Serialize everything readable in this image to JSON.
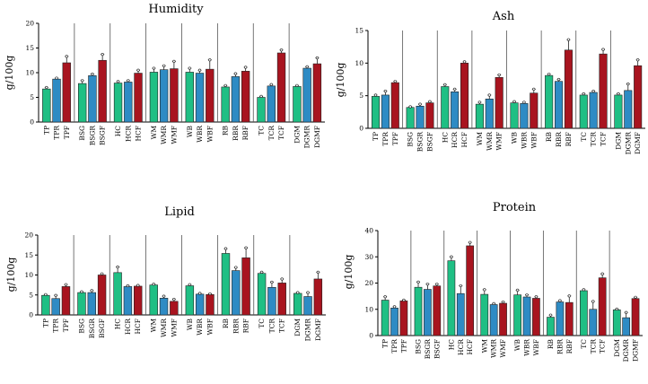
{
  "colors": {
    "green": "#1fbf84",
    "blue": "#2e8bc4",
    "red": "#a8141f",
    "bar_stroke": "#222222",
    "axis": "#000000",
    "group_divider": "#555555"
  },
  "chart_data": [
    {
      "type": "bar",
      "title": "Humidity",
      "ylabel": "g/100g",
      "ylim": [
        0,
        20
      ],
      "yticks": [
        0,
        5,
        10,
        15,
        20
      ],
      "grid": false,
      "groups": [
        {
          "labels": [
            "TP",
            "TPR",
            "TPF"
          ],
          "values": [
            6.7,
            8.7,
            12.0
          ],
          "errors": [
            0.3,
            0.2,
            1.3
          ]
        },
        {
          "labels": [
            "BSG",
            "BSGR",
            "BSGF"
          ],
          "values": [
            7.8,
            9.4,
            12.5
          ],
          "errors": [
            0.6,
            0.3,
            1.2
          ]
        },
        {
          "labels": [
            "HC",
            "HCR",
            "HCF"
          ],
          "values": [
            7.9,
            8.1,
            9.9
          ],
          "errors": [
            0.3,
            0.3,
            0.6
          ]
        },
        {
          "labels": [
            "WM",
            "WMR",
            "WMF"
          ],
          "values": [
            10.1,
            10.6,
            10.8
          ],
          "errors": [
            0.8,
            0.8,
            1.5
          ]
        },
        {
          "labels": [
            "WB",
            "WBR",
            "WBF"
          ],
          "values": [
            10.1,
            9.9,
            10.7
          ],
          "errors": [
            0.8,
            0.6,
            1.9
          ]
        },
        {
          "labels": [
            "RB",
            "RBR",
            "RBF"
          ],
          "values": [
            7.1,
            9.2,
            10.3
          ],
          "errors": [
            0.3,
            0.6,
            0.8
          ]
        },
        {
          "labels": [
            "TC",
            "TCR",
            "TCF"
          ],
          "values": [
            5.0,
            7.3,
            14.0
          ],
          "errors": [
            0.2,
            0.3,
            0.6
          ]
        },
        {
          "labels": [
            "DGM",
            "DGMR",
            "DGMF"
          ],
          "values": [
            7.2,
            10.9,
            11.8
          ],
          "errors": [
            0.2,
            0.3,
            1.2
          ]
        }
      ]
    },
    {
      "type": "bar",
      "title": "Ash",
      "ylabel": "g/100g",
      "ylim": [
        0,
        15
      ],
      "yticks": [
        0,
        5,
        10,
        15
      ],
      "grid": false,
      "groups": [
        {
          "labels": [
            "TP",
            "TPR",
            "TPF"
          ],
          "values": [
            4.9,
            5.1,
            7.0
          ],
          "errors": [
            0.2,
            0.6,
            0.2
          ]
        },
        {
          "labels": [
            "BSG",
            "BSGR",
            "BSGF"
          ],
          "values": [
            3.2,
            3.4,
            3.9
          ],
          "errors": [
            0.1,
            0.3,
            0.2
          ]
        },
        {
          "labels": [
            "HC",
            "HCR",
            "HCF"
          ],
          "values": [
            6.4,
            5.6,
            10.0
          ],
          "errors": [
            0.3,
            0.4,
            0.2
          ]
        },
        {
          "labels": [
            "WM",
            "WMR",
            "WMF"
          ],
          "values": [
            3.7,
            4.5,
            7.8
          ],
          "errors": [
            0.3,
            0.6,
            0.4
          ]
        },
        {
          "labels": [
            "WB",
            "WBR",
            "WBF"
          ],
          "values": [
            3.9,
            3.8,
            5.4
          ],
          "errors": [
            0.2,
            0.2,
            0.6
          ]
        },
        {
          "labels": [
            "RB",
            "RBR",
            "RBF"
          ],
          "values": [
            8.1,
            7.2,
            12.0
          ],
          "errors": [
            0.2,
            0.3,
            1.6
          ]
        },
        {
          "labels": [
            "TC",
            "TCR",
            "TCF"
          ],
          "values": [
            5.1,
            5.5,
            11.4
          ],
          "errors": [
            0.2,
            0.2,
            0.7
          ]
        },
        {
          "labels": [
            "DGM",
            "DGMR",
            "DGMF"
          ],
          "values": [
            5.1,
            5.8,
            9.6
          ],
          "errors": [
            0.2,
            1.0,
            0.9
          ]
        }
      ]
    },
    {
      "type": "bar",
      "title": "Lipid",
      "ylabel": "g/100g",
      "ylim": [
        0,
        20
      ],
      "yticks": [
        0,
        5,
        10,
        15,
        20
      ],
      "grid": false,
      "groups": [
        {
          "labels": [
            "TP",
            "TPR",
            "TPF"
          ],
          "values": [
            4.9,
            4.1,
            7.1
          ],
          "errors": [
            0.2,
            0.8,
            0.5
          ]
        },
        {
          "labels": [
            "BSG",
            "BSGR",
            "BSGF"
          ],
          "values": [
            5.6,
            5.6,
            10.0
          ],
          "errors": [
            0.2,
            0.5,
            0.3
          ]
        },
        {
          "labels": [
            "HC",
            "HCR",
            "HCF"
          ],
          "values": [
            10.6,
            7.1,
            7.2
          ],
          "errors": [
            1.4,
            0.2,
            0.2
          ]
        },
        {
          "labels": [
            "WM",
            "WMR",
            "WMF"
          ],
          "values": [
            7.5,
            4.2,
            3.4
          ],
          "errors": [
            0.2,
            0.5,
            0.5
          ]
        },
        {
          "labels": [
            "WB",
            "WBR",
            "WBF"
          ],
          "values": [
            7.3,
            5.2,
            5.1
          ],
          "errors": [
            0.3,
            0.2,
            0.2
          ]
        },
        {
          "labels": [
            "RB",
            "RBR",
            "RBF"
          ],
          "values": [
            15.4,
            11.1,
            14.3
          ],
          "errors": [
            1.2,
            0.8,
            2.5
          ]
        },
        {
          "labels": [
            "TC",
            "TCR",
            "TCF"
          ],
          "values": [
            10.4,
            6.9,
            8.0
          ],
          "errors": [
            0.3,
            1.3,
            1.0
          ]
        },
        {
          "labels": [
            "DGM",
            "DGMR",
            "DGMF"
          ],
          "values": [
            5.4,
            4.6,
            9.0
          ],
          "errors": [
            0.2,
            1.0,
            1.7
          ]
        }
      ]
    },
    {
      "type": "bar",
      "title": "Protein",
      "ylabel": "g/100g",
      "ylim": [
        0,
        40
      ],
      "yticks": [
        0,
        10,
        20,
        30,
        40
      ],
      "grid": false,
      "groups": [
        {
          "labels": [
            "TP",
            "TPR",
            "TPF"
          ],
          "values": [
            13.5,
            10.5,
            13.2
          ],
          "errors": [
            1.3,
            0.5,
            0.3
          ]
        },
        {
          "labels": [
            "BSG",
            "BSGR",
            "BSGF"
          ],
          "values": [
            18.4,
            17.6,
            18.9
          ],
          "errors": [
            2.0,
            2.0,
            0.7
          ]
        },
        {
          "labels": [
            "HC",
            "HCR",
            "HCF"
          ],
          "values": [
            28.5,
            16.0,
            34.2
          ],
          "errors": [
            1.5,
            3.0,
            1.3
          ]
        },
        {
          "labels": [
            "WM",
            "WMR",
            "WMF"
          ],
          "values": [
            15.7,
            11.8,
            12.3
          ],
          "errors": [
            1.8,
            0.4,
            0.5
          ]
        },
        {
          "labels": [
            "WB",
            "WBR",
            "WBF"
          ],
          "values": [
            15.5,
            14.7,
            14.2
          ],
          "errors": [
            1.8,
            0.8,
            0.6
          ]
        },
        {
          "labels": [
            "RB",
            "RBR",
            "RBF"
          ],
          "values": [
            7.0,
            12.8,
            12.6
          ],
          "errors": [
            0.8,
            0.5,
            2.5
          ]
        },
        {
          "labels": [
            "TC",
            "TCR",
            "TCF"
          ],
          "values": [
            17.1,
            10.0,
            22.0
          ],
          "errors": [
            0.4,
            3.0,
            1.5
          ]
        },
        {
          "labels": [
            "DGM",
            "DGMR",
            "DGMF"
          ],
          "values": [
            9.8,
            6.8,
            14.1
          ],
          "errors": [
            0.3,
            2.0,
            0.5
          ]
        }
      ]
    }
  ]
}
